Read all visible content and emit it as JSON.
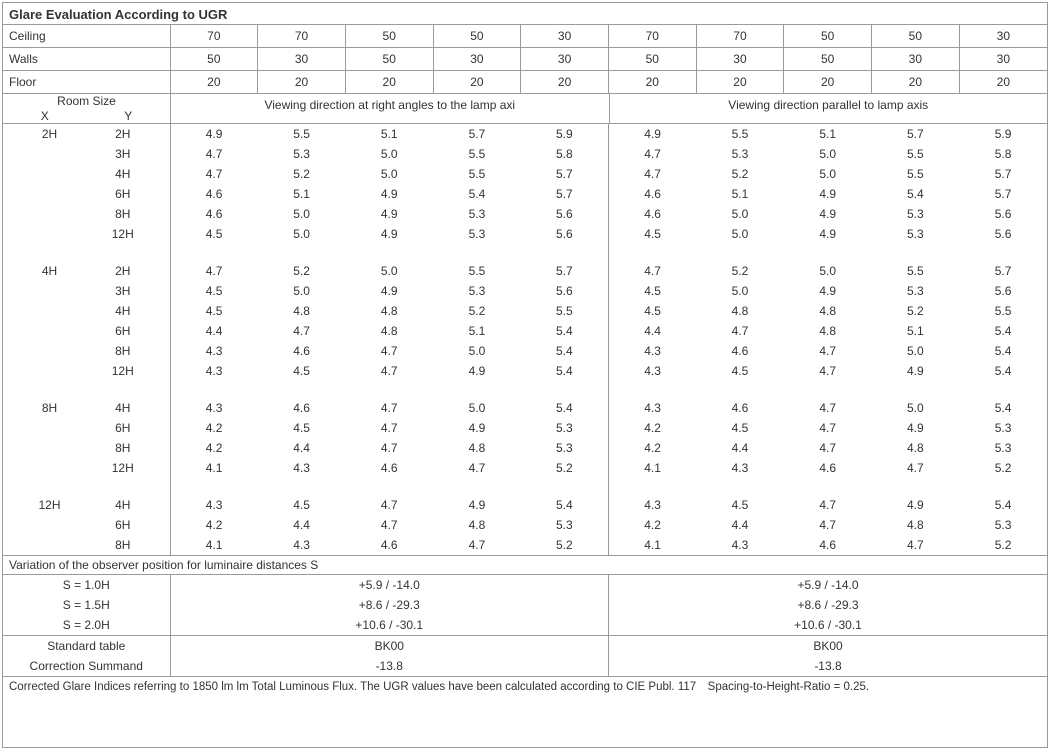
{
  "title": "Glare Evaluation According to UGR",
  "reflectances": {
    "labels": {
      "ceiling": "Ceiling",
      "walls": "Walls",
      "floor": "Floor"
    },
    "ceiling": [
      "70",
      "70",
      "50",
      "50",
      "30",
      "70",
      "70",
      "50",
      "50",
      "30"
    ],
    "walls": [
      "50",
      "30",
      "50",
      "30",
      "30",
      "50",
      "30",
      "50",
      "30",
      "30"
    ],
    "floor": [
      "20",
      "20",
      "20",
      "20",
      "20",
      "20",
      "20",
      "20",
      "20",
      "20"
    ]
  },
  "view_headers": {
    "room_size": "Room Size",
    "x": "X",
    "y": "Y",
    "left": "Viewing direction at right angles to the lamp axi",
    "right": "Viewing direction parallel to lamp axis"
  },
  "groups": [
    {
      "x": "2H",
      "rows": [
        {
          "y": "2H",
          "v": [
            "4.9",
            "5.5",
            "5.1",
            "5.7",
            "5.9",
            "4.9",
            "5.5",
            "5.1",
            "5.7",
            "5.9"
          ]
        },
        {
          "y": "3H",
          "v": [
            "4.7",
            "5.3",
            "5.0",
            "5.5",
            "5.8",
            "4.7",
            "5.3",
            "5.0",
            "5.5",
            "5.8"
          ]
        },
        {
          "y": "4H",
          "v": [
            "4.7",
            "5.2",
            "5.0",
            "5.5",
            "5.7",
            "4.7",
            "5.2",
            "5.0",
            "5.5",
            "5.7"
          ]
        },
        {
          "y": "6H",
          "v": [
            "4.6",
            "5.1",
            "4.9",
            "5.4",
            "5.7",
            "4.6",
            "5.1",
            "4.9",
            "5.4",
            "5.7"
          ]
        },
        {
          "y": "8H",
          "v": [
            "4.6",
            "5.0",
            "4.9",
            "5.3",
            "5.6",
            "4.6",
            "5.0",
            "4.9",
            "5.3",
            "5.6"
          ]
        },
        {
          "y": "12H",
          "v": [
            "4.5",
            "5.0",
            "4.9",
            "5.3",
            "5.6",
            "4.5",
            "5.0",
            "4.9",
            "5.3",
            "5.6"
          ]
        }
      ]
    },
    {
      "x": "4H",
      "rows": [
        {
          "y": "2H",
          "v": [
            "4.7",
            "5.2",
            "5.0",
            "5.5",
            "5.7",
            "4.7",
            "5.2",
            "5.0",
            "5.5",
            "5.7"
          ]
        },
        {
          "y": "3H",
          "v": [
            "4.5",
            "5.0",
            "4.9",
            "5.3",
            "5.6",
            "4.5",
            "5.0",
            "4.9",
            "5.3",
            "5.6"
          ]
        },
        {
          "y": "4H",
          "v": [
            "4.5",
            "4.8",
            "4.8",
            "5.2",
            "5.5",
            "4.5",
            "4.8",
            "4.8",
            "5.2",
            "5.5"
          ]
        },
        {
          "y": "6H",
          "v": [
            "4.4",
            "4.7",
            "4.8",
            "5.1",
            "5.4",
            "4.4",
            "4.7",
            "4.8",
            "5.1",
            "5.4"
          ]
        },
        {
          "y": "8H",
          "v": [
            "4.3",
            "4.6",
            "4.7",
            "5.0",
            "5.4",
            "4.3",
            "4.6",
            "4.7",
            "5.0",
            "5.4"
          ]
        },
        {
          "y": "12H",
          "v": [
            "4.3",
            "4.5",
            "4.7",
            "4.9",
            "5.4",
            "4.3",
            "4.5",
            "4.7",
            "4.9",
            "5.4"
          ]
        }
      ]
    },
    {
      "x": "8H",
      "rows": [
        {
          "y": "4H",
          "v": [
            "4.3",
            "4.6",
            "4.7",
            "5.0",
            "5.4",
            "4.3",
            "4.6",
            "4.7",
            "5.0",
            "5.4"
          ]
        },
        {
          "y": "6H",
          "v": [
            "4.2",
            "4.5",
            "4.7",
            "4.9",
            "5.3",
            "4.2",
            "4.5",
            "4.7",
            "4.9",
            "5.3"
          ]
        },
        {
          "y": "8H",
          "v": [
            "4.2",
            "4.4",
            "4.7",
            "4.8",
            "5.3",
            "4.2",
            "4.4",
            "4.7",
            "4.8",
            "5.3"
          ]
        },
        {
          "y": "12H",
          "v": [
            "4.1",
            "4.3",
            "4.6",
            "4.7",
            "5.2",
            "4.1",
            "4.3",
            "4.6",
            "4.7",
            "5.2"
          ]
        }
      ]
    },
    {
      "x": "12H",
      "rows": [
        {
          "y": "4H",
          "v": [
            "4.3",
            "4.5",
            "4.7",
            "4.9",
            "5.4",
            "4.3",
            "4.5",
            "4.7",
            "4.9",
            "5.4"
          ]
        },
        {
          "y": "6H",
          "v": [
            "4.2",
            "4.4",
            "4.7",
            "4.8",
            "5.3",
            "4.2",
            "4.4",
            "4.7",
            "4.8",
            "5.3"
          ]
        },
        {
          "y": "8H",
          "v": [
            "4.1",
            "4.3",
            "4.6",
            "4.7",
            "5.2",
            "4.1",
            "4.3",
            "4.6",
            "4.7",
            "5.2"
          ]
        }
      ]
    }
  ],
  "variation": {
    "header": "Variation of the observer position for luminaire distances S",
    "rows": [
      {
        "label": "S = 1.0H",
        "left": "+5.9 / -14.0",
        "right": "+5.9 / -14.0"
      },
      {
        "label": "S = 1.5H",
        "left": "+8.6 / -29.3",
        "right": "+8.6 / -29.3"
      },
      {
        "label": "S = 2.0H",
        "left": "+10.6 / -30.1",
        "right": "+10.6 / -30.1"
      }
    ]
  },
  "correction": {
    "rows": [
      {
        "label": "Standard table",
        "left": "BK00",
        "right": "BK00"
      },
      {
        "label": "Correction Summand",
        "left": "-13.8",
        "right": "-13.8"
      }
    ]
  },
  "footnote": "Corrected Glare Indices referring to 1850 lm lm Total Luminous Flux. The UGR values have been calculated according to CIE Publ. 117 Spacing-to-Height-Ratio = 0.25."
}
